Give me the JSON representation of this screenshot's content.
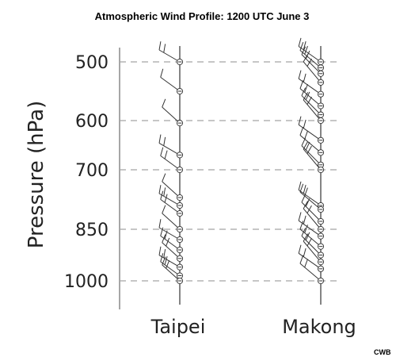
{
  "chart_data": {
    "type": "wind_profile",
    "title": "Atmospheric Wind Profile: 1200 UTC June 3",
    "ylabel": "Pressure (hPa)",
    "yticks": [
      500,
      600,
      700,
      850,
      1000
    ],
    "ylim": [
      1050,
      480
    ],
    "grid": true,
    "credit": "CWB",
    "stations": [
      {
        "name": "Taipei",
        "levels": [
          {
            "p": 500,
            "barbs": 2
          },
          {
            "p": 550,
            "barbs": 1
          },
          {
            "p": 605,
            "barbs": 1
          },
          {
            "p": 670,
            "barbs": 2
          },
          {
            "p": 700,
            "barbs": 2
          },
          {
            "p": 770,
            "barbs": 1
          },
          {
            "p": 790,
            "barbs": 2
          },
          {
            "p": 810,
            "barbs": 2
          },
          {
            "p": 850,
            "barbs": 1
          },
          {
            "p": 880,
            "barbs": 1
          },
          {
            "p": 910,
            "barbs": 2
          },
          {
            "p": 935,
            "barbs": 2
          },
          {
            "p": 960,
            "barbs": 2
          },
          {
            "p": 985,
            "barbs": 2
          },
          {
            "p": 1000,
            "barbs": 2
          }
        ]
      },
      {
        "name": "Makong",
        "levels": [
          {
            "p": 500,
            "barbs": 2
          },
          {
            "p": 510,
            "barbs": 2
          },
          {
            "p": 520,
            "barbs": 2
          },
          {
            "p": 535,
            "barbs": 2
          },
          {
            "p": 555,
            "barbs": 2
          },
          {
            "p": 575,
            "barbs": 2
          },
          {
            "p": 590,
            "barbs": 2
          },
          {
            "p": 600,
            "barbs": 2
          },
          {
            "p": 640,
            "barbs": 2
          },
          {
            "p": 665,
            "barbs": 2
          },
          {
            "p": 690,
            "barbs": 2
          },
          {
            "p": 700,
            "barbs": 2
          },
          {
            "p": 790,
            "barbs": 2
          },
          {
            "p": 800,
            "barbs": 2
          },
          {
            "p": 830,
            "barbs": 2
          },
          {
            "p": 850,
            "barbs": 2
          },
          {
            "p": 870,
            "barbs": 2
          },
          {
            "p": 900,
            "barbs": 2
          },
          {
            "p": 925,
            "barbs": 2
          },
          {
            "p": 945,
            "barbs": 2
          },
          {
            "p": 965,
            "barbs": 2
          },
          {
            "p": 1000,
            "barbs": 2
          }
        ]
      }
    ]
  }
}
